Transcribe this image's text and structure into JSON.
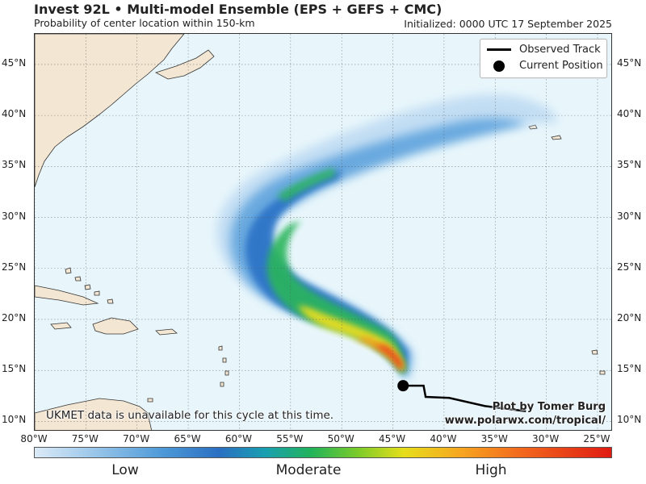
{
  "header": {
    "title": "Invest 92L • Multi-model Ensemble (EPS + GEFS + CMC)",
    "subtitle": "Probability of center location within 150-km",
    "initialized": "Initialized: 0000 UTC 17 September 2025"
  },
  "map": {
    "lat_labels": [
      "45°N",
      "40°N",
      "35°N",
      "30°N",
      "25°N",
      "20°N",
      "15°N",
      "10°N"
    ],
    "lon_labels": [
      "80°W",
      "75°W",
      "70°W",
      "65°W",
      "60°W",
      "55°W",
      "50°W",
      "45°W",
      "40°W",
      "35°W",
      "30°W",
      "25°W"
    ],
    "lon_range": [
      -80,
      -23.5
    ],
    "lat_range": [
      9,
      48
    ],
    "current_position": {
      "lon": -44,
      "lat": 13.5
    },
    "observed_track": [
      {
        "lon": -44,
        "lat": 13.5
      },
      {
        "lon": -42,
        "lat": 13.5
      },
      {
        "lon": -41.8,
        "lat": 12.4
      },
      {
        "lon": -39.5,
        "lat": 12.3
      },
      {
        "lon": -36,
        "lat": 11.5
      },
      {
        "lon": -32,
        "lat": 11.0
      }
    ]
  },
  "legend": {
    "track_label": "Observed Track",
    "position_label": "Current Position"
  },
  "note": "UKMET data is unavailable for this cycle at this time.",
  "credit": {
    "line1": "Plot by Tomer Burg",
    "line2": "www.polarwx.com/tropical/"
  },
  "colorbar": {
    "low": "Low",
    "moderate": "Moderate",
    "high": "High"
  },
  "colors": {
    "ocean": "#e8f6fb",
    "land": "#f3e6d3",
    "track": "#000000",
    "low": "#4e9ad8",
    "moderate": "#22b35a",
    "high": "#e01b12"
  }
}
